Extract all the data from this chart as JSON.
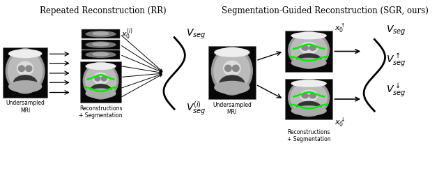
{
  "title_left": "Repeated Reconstruction (RR)",
  "title_right": "Segmentation-Guided Reconstruction (SGR, ours)",
  "label_undersampled": "Undersampled\nMRI",
  "label_recon_seg": "Reconstructions\n+ Segmentation",
  "label_x0i": "$x_0^{(i)}$",
  "label_Vseg_rr": "$V_{seg}$",
  "label_Vsegi": "$V_{seg}^{(i)}$",
  "label_x0_up": "$x_0^{\\uparrow}$",
  "label_x0_down": "$x_0^{\\downarrow}$",
  "label_Vseg_sgr": "$V_{seg}$",
  "label_Vseg_up": "$V_{seg}^{\\uparrow}$",
  "label_Vseg_down": "$V_{seg}^{\\downarrow}$",
  "bg_color": "#ffffff",
  "arrow_color": "#000000",
  "text_color": "#000000",
  "seg_green": "#00ee00",
  "mri_outer": "#999999",
  "mri_mid": "#cccccc",
  "mri_inner": "#eeeeee",
  "mri_dark": "#444444",
  "mri_bg": "#080808"
}
